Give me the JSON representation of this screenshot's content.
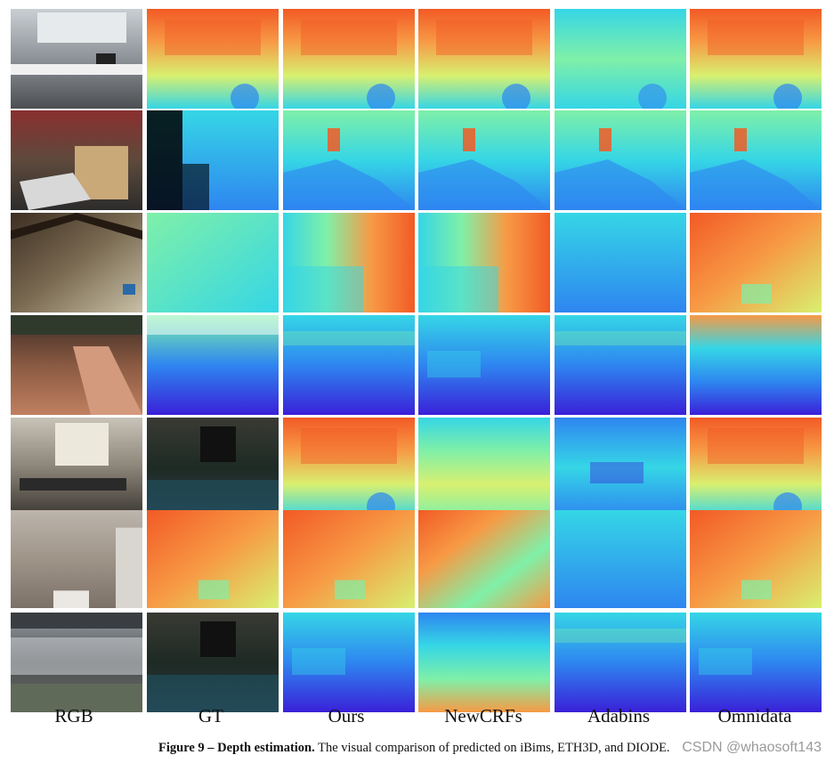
{
  "figure": {
    "columns": [
      "RGB",
      "GT",
      "Ours",
      "NewCRFs",
      "Adabins",
      "Omnidata"
    ],
    "rows": 7,
    "caption": {
      "label": "Figure 9 – Depth estimation.",
      "text": " The visual comparison of predicted on iBims, ETH3D, and DIODE."
    },
    "watermark": "CSDN @whaosoft143"
  },
  "palette": {
    "near": "#3a20d8",
    "mid_blue": "#2e86f0",
    "cyan": "#35d6e6",
    "green": "#7ff0a8",
    "yellow": "#d8f070",
    "orange": "#f79a45",
    "far": "#f25a25"
  },
  "cell_styles": [
    [
      "rgb-kitchen",
      "depth-warm",
      "depth-warm",
      "depth-warm",
      "depth-cool-cyan",
      "depth-warm"
    ],
    [
      "rgb-office-red",
      "depth-sparse-cyan",
      "depth-cyan",
      "depth-cyan",
      "depth-cyan",
      "depth-cyan"
    ],
    [
      "rgb-attic",
      "depth-cyan-light",
      "depth-cyan-orange",
      "depth-cyan-orange",
      "depth-blue",
      "depth-orange"
    ],
    [
      "rgb-outdoor-ramp",
      "depth-sparse-blue",
      "depth-blue-violet",
      "depth-blue-cyan",
      "depth-blue-violet",
      "depth-blue-warm"
    ],
    [
      "rgb-office-window",
      "rgb-dark-noisy",
      "depth-warm",
      "depth-cyan-green",
      "depth-cyan-blue",
      "depth-warm"
    ],
    [
      "rgb-room-corner",
      "depth-orange",
      "depth-orange",
      "depth-orange-mix",
      "depth-blue",
      "depth-orange"
    ],
    [
      "rgb-building",
      "rgb-dark-noisy",
      "depth-blue-cyan",
      "depth-cyan-warm",
      "depth-blue-violet",
      "depth-blue-cyan"
    ]
  ]
}
